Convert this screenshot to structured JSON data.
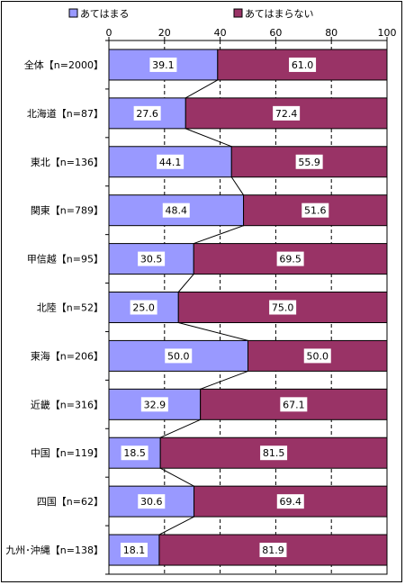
{
  "chart_data": {
    "type": "bar",
    "orientation": "horizontal",
    "stacked": true,
    "percent": true,
    "title": "",
    "xlabel": "",
    "ylabel": "",
    "xlim": [
      0,
      100
    ],
    "x_ticks": [
      0,
      20,
      40,
      60,
      80,
      100
    ],
    "grid": "vertical dashed",
    "legend_position": "top",
    "series_lines": true,
    "categories": [
      "全体【n=2000】",
      "北海道【n=87】",
      "東北【n=136】",
      "関東【n=789】",
      "甲信越【n=95】",
      "北陸【n=52】",
      "東海【n=206】",
      "近畿【n=316】",
      "中国【n=119】",
      "四国【n=62】",
      "九州･沖縄【n=138】"
    ],
    "series": [
      {
        "name": "あてはまる",
        "color": "#9999ff",
        "values": [
          39.1,
          27.6,
          44.1,
          48.4,
          30.5,
          25.0,
          50.0,
          32.9,
          18.5,
          30.6,
          18.1
        ]
      },
      {
        "name": "あてはまらない",
        "color": "#993366",
        "values": [
          61.0,
          72.4,
          55.9,
          51.6,
          69.5,
          75.0,
          50.0,
          67.1,
          81.5,
          69.4,
          81.9
        ]
      }
    ]
  }
}
